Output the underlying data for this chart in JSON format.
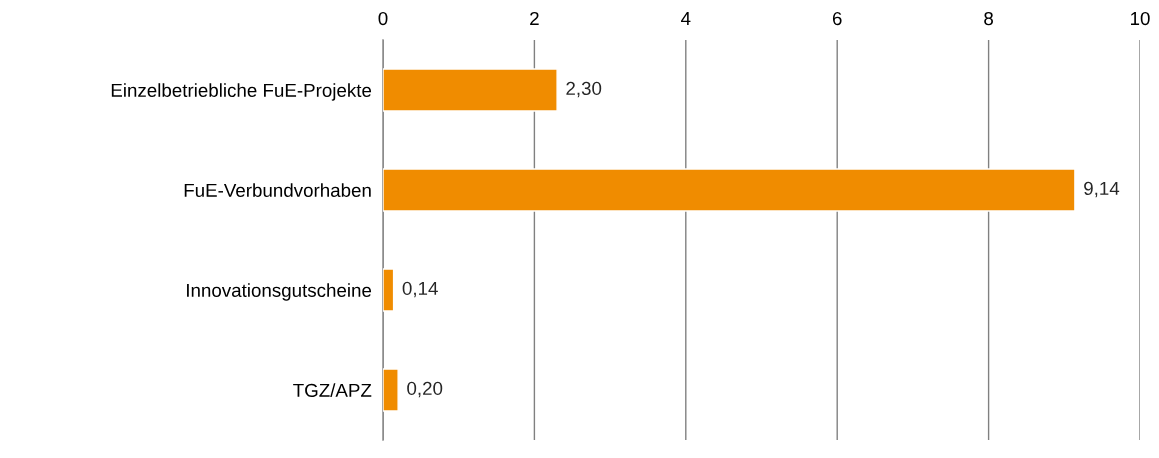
{
  "chart_data": {
    "type": "bar",
    "orientation": "horizontal",
    "categories": [
      "Einzelbetriebliche FuE-Projekte",
      "FuE-Verbundvorhaben",
      "Innovationsgutscheine",
      "TGZ/APZ"
    ],
    "values": [
      2.3,
      9.14,
      0.14,
      0.2
    ],
    "value_labels": [
      "2,30",
      "9,14",
      "0,14",
      "0,20"
    ],
    "color": "#f08c00",
    "xlim": [
      0,
      10
    ],
    "xticks": [
      0,
      2,
      4,
      6,
      8,
      10
    ],
    "grid": "x",
    "legend": false
  }
}
